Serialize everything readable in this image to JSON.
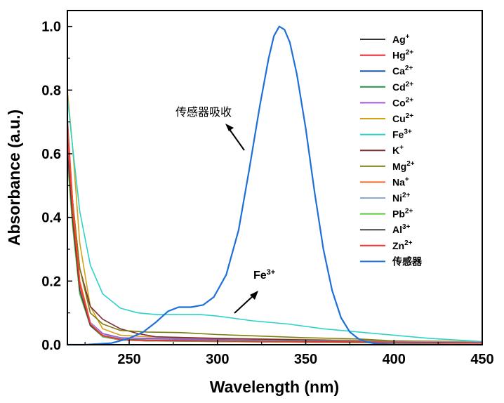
{
  "chart_data": {
    "type": "line",
    "title": "",
    "xlabel": "Wavelength (nm)",
    "ylabel": "Absorbance (a.u.)",
    "xlim": [
      215,
      450
    ],
    "ylim": [
      0,
      1.05
    ],
    "xticks": [
      250,
      300,
      350,
      400,
      450
    ],
    "yticks": [
      0.0,
      0.2,
      0.4,
      0.6,
      0.8,
      1.0
    ],
    "xtick_labels": [
      "250",
      "300",
      "350",
      "400",
      "450"
    ],
    "ytick_labels": [
      "0.0",
      "0.2",
      "0.4",
      "0.6",
      "0.8",
      "1.0"
    ],
    "legend_position": "top-right",
    "series": [
      {
        "name": "Ag",
        "sup": "+",
        "color": "#333333",
        "points": [
          [
            215,
            0.62
          ],
          [
            218,
            0.4
          ],
          [
            222,
            0.18
          ],
          [
            228,
            0.07
          ],
          [
            235,
            0.035
          ],
          [
            245,
            0.022
          ],
          [
            260,
            0.018
          ],
          [
            300,
            0.015
          ],
          [
            350,
            0.012
          ],
          [
            400,
            0.01
          ],
          [
            450,
            0.008
          ]
        ]
      },
      {
        "name": "Hg",
        "sup": "2+",
        "color": "#e8222e",
        "points": [
          [
            215,
            0.71
          ],
          [
            218,
            0.45
          ],
          [
            222,
            0.2
          ],
          [
            228,
            0.07
          ],
          [
            235,
            0.03
          ],
          [
            245,
            0.018
          ],
          [
            260,
            0.014
          ],
          [
            300,
            0.012
          ],
          [
            350,
            0.01
          ],
          [
            400,
            0.008
          ],
          [
            450,
            0.006
          ]
        ]
      },
      {
        "name": "Ca",
        "sup": "2+",
        "color": "#1a53a8",
        "points": [
          [
            215,
            0.6
          ],
          [
            218,
            0.38
          ],
          [
            222,
            0.16
          ],
          [
            228,
            0.06
          ],
          [
            235,
            0.025
          ],
          [
            245,
            0.015
          ],
          [
            260,
            0.012
          ],
          [
            300,
            0.01
          ],
          [
            350,
            0.008
          ],
          [
            400,
            0.006
          ],
          [
            450,
            0.005
          ]
        ]
      },
      {
        "name": "Cd",
        "sup": "2+",
        "color": "#1f8f4a",
        "points": [
          [
            215,
            0.6
          ],
          [
            218,
            0.38
          ],
          [
            222,
            0.17
          ],
          [
            228,
            0.06
          ],
          [
            235,
            0.03
          ],
          [
            245,
            0.018
          ],
          [
            260,
            0.015
          ],
          [
            300,
            0.012
          ],
          [
            350,
            0.01
          ],
          [
            400,
            0.008
          ],
          [
            450,
            0.006
          ]
        ]
      },
      {
        "name": "Co",
        "sup": "2+",
        "color": "#a855d6",
        "points": [
          [
            215,
            0.64
          ],
          [
            218,
            0.42
          ],
          [
            222,
            0.19
          ],
          [
            228,
            0.07
          ],
          [
            235,
            0.035
          ],
          [
            245,
            0.022
          ],
          [
            260,
            0.02
          ],
          [
            300,
            0.018
          ],
          [
            350,
            0.016
          ],
          [
            400,
            0.012
          ],
          [
            450,
            0.01
          ]
        ]
      },
      {
        "name": "Cu",
        "sup": "2+",
        "color": "#d4a017",
        "points": [
          [
            215,
            0.8
          ],
          [
            218,
            0.62
          ],
          [
            222,
            0.32
          ],
          [
            228,
            0.12
          ],
          [
            235,
            0.05
          ],
          [
            245,
            0.03
          ],
          [
            260,
            0.025
          ],
          [
            300,
            0.02
          ],
          [
            350,
            0.016
          ],
          [
            400,
            0.012
          ],
          [
            450,
            0.01
          ]
        ]
      },
      {
        "name": "Fe",
        "sup": "3+",
        "color": "#2ed3c8",
        "points": [
          [
            215,
            0.78
          ],
          [
            218,
            0.62
          ],
          [
            222,
            0.42
          ],
          [
            228,
            0.25
          ],
          [
            235,
            0.16
          ],
          [
            245,
            0.115
          ],
          [
            255,
            0.1
          ],
          [
            265,
            0.095
          ],
          [
            280,
            0.095
          ],
          [
            290,
            0.095
          ],
          [
            300,
            0.09
          ],
          [
            320,
            0.075
          ],
          [
            340,
            0.065
          ],
          [
            360,
            0.05
          ],
          [
            380,
            0.04
          ],
          [
            400,
            0.03
          ],
          [
            420,
            0.02
          ],
          [
            450,
            0.01
          ]
        ]
      },
      {
        "name": "K",
        "sup": "+",
        "color": "#7a2d2d",
        "points": [
          [
            215,
            0.66
          ],
          [
            218,
            0.45
          ],
          [
            222,
            0.24
          ],
          [
            228,
            0.12
          ],
          [
            235,
            0.08
          ],
          [
            245,
            0.05
          ],
          [
            255,
            0.035
          ],
          [
            265,
            0.025
          ],
          [
            300,
            0.02
          ],
          [
            350,
            0.015
          ],
          [
            400,
            0.01
          ],
          [
            450,
            0.008
          ]
        ]
      },
      {
        "name": "Mg",
        "sup": "2+",
        "color": "#7d7a10",
        "points": [
          [
            215,
            0.64
          ],
          [
            218,
            0.45
          ],
          [
            222,
            0.24
          ],
          [
            228,
            0.1
          ],
          [
            235,
            0.065
          ],
          [
            245,
            0.045
          ],
          [
            260,
            0.04
          ],
          [
            280,
            0.038
          ],
          [
            300,
            0.032
          ],
          [
            320,
            0.028
          ],
          [
            350,
            0.022
          ],
          [
            380,
            0.018
          ],
          [
            400,
            0.012
          ],
          [
            450,
            0.008
          ]
        ]
      },
      {
        "name": "Na",
        "sup": "+",
        "color": "#f06a2a",
        "points": [
          [
            215,
            0.69
          ],
          [
            218,
            0.44
          ],
          [
            222,
            0.2
          ],
          [
            228,
            0.07
          ],
          [
            235,
            0.03
          ],
          [
            245,
            0.018
          ],
          [
            260,
            0.014
          ],
          [
            300,
            0.012
          ],
          [
            350,
            0.01
          ],
          [
            400,
            0.008
          ],
          [
            450,
            0.006
          ]
        ]
      },
      {
        "name": "Ni",
        "sup": "2+",
        "color": "#8aa8d8",
        "points": [
          [
            215,
            0.63
          ],
          [
            218,
            0.4
          ],
          [
            222,
            0.18
          ],
          [
            228,
            0.07
          ],
          [
            235,
            0.03
          ],
          [
            245,
            0.02
          ],
          [
            260,
            0.016
          ],
          [
            300,
            0.014
          ],
          [
            350,
            0.012
          ],
          [
            400,
            0.01
          ],
          [
            450,
            0.008
          ]
        ]
      },
      {
        "name": "Pb",
        "sup": "2+",
        "color": "#5cc93a",
        "points": [
          [
            215,
            0.58
          ],
          [
            218,
            0.37
          ],
          [
            222,
            0.16
          ],
          [
            228,
            0.06
          ],
          [
            235,
            0.025
          ],
          [
            245,
            0.015
          ],
          [
            260,
            0.012
          ],
          [
            300,
            0.01
          ],
          [
            350,
            0.008
          ],
          [
            400,
            0.006
          ],
          [
            450,
            0.005
          ]
        ]
      },
      {
        "name": "Al",
        "sup": "3+",
        "color": "#444444",
        "points": [
          [
            215,
            0.61
          ],
          [
            218,
            0.39
          ],
          [
            222,
            0.17
          ],
          [
            228,
            0.06
          ],
          [
            235,
            0.028
          ],
          [
            245,
            0.017
          ],
          [
            260,
            0.014
          ],
          [
            300,
            0.012
          ],
          [
            350,
            0.01
          ],
          [
            400,
            0.008
          ],
          [
            450,
            0.006
          ]
        ]
      },
      {
        "name": "Zn",
        "sup": "2+",
        "color": "#ff3030",
        "points": [
          [
            215,
            0.67
          ],
          [
            218,
            0.42
          ],
          [
            222,
            0.19
          ],
          [
            228,
            0.065
          ],
          [
            235,
            0.028
          ],
          [
            245,
            0.016
          ],
          [
            260,
            0.013
          ],
          [
            300,
            0.011
          ],
          [
            350,
            0.009
          ],
          [
            400,
            0.007
          ],
          [
            450,
            0.005
          ]
        ]
      },
      {
        "name": "传感器",
        "sup": "",
        "color": "#1f6fd9",
        "stroke_width": 2.2,
        "points": [
          [
            215,
            0.0
          ],
          [
            225,
            0.0
          ],
          [
            240,
            0.005
          ],
          [
            250,
            0.02
          ],
          [
            258,
            0.04
          ],
          [
            265,
            0.07
          ],
          [
            272,
            0.105
          ],
          [
            278,
            0.118
          ],
          [
            285,
            0.118
          ],
          [
            292,
            0.125
          ],
          [
            298,
            0.15
          ],
          [
            305,
            0.22
          ],
          [
            312,
            0.36
          ],
          [
            318,
            0.55
          ],
          [
            324,
            0.75
          ],
          [
            329,
            0.9
          ],
          [
            332,
            0.97
          ],
          [
            335,
            1.0
          ],
          [
            338,
            0.99
          ],
          [
            341,
            0.95
          ],
          [
            345,
            0.85
          ],
          [
            350,
            0.68
          ],
          [
            355,
            0.48
          ],
          [
            360,
            0.3
          ],
          [
            365,
            0.17
          ],
          [
            370,
            0.085
          ],
          [
            375,
            0.04
          ],
          [
            380,
            0.018
          ],
          [
            385,
            0.008
          ],
          [
            390,
            0.003
          ],
          [
            400,
            0.001
          ],
          [
            450,
            0.0
          ]
        ]
      }
    ],
    "annotations": [
      {
        "text": "传感器吸收"
      },
      {
        "text": "Fe",
        "sup": "3+"
      }
    ]
  }
}
